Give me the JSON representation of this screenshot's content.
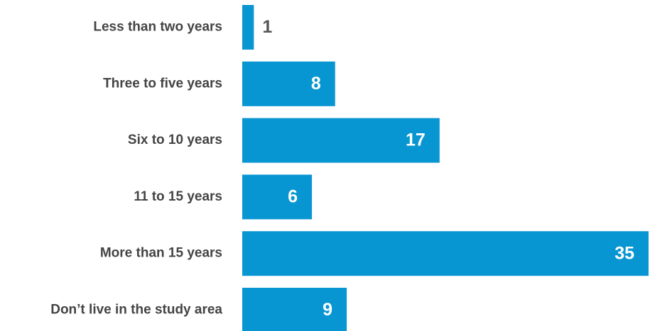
{
  "chart_data": {
    "type": "bar",
    "orientation": "horizontal",
    "categories": [
      "Less than two years",
      "Three to five years",
      "Six to 10 years",
      "11 to 15 years",
      "More than 15 years",
      "Don’t live in the study area"
    ],
    "values": [
      1,
      8,
      17,
      6,
      35,
      9
    ],
    "color": "#0896d3"
  }
}
